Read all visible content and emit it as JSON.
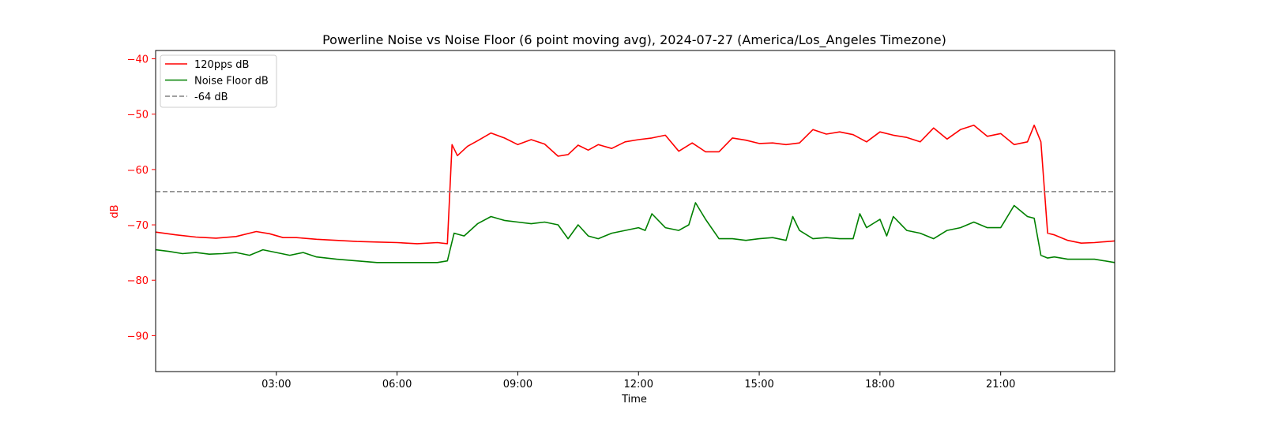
{
  "chart_data": {
    "type": "line",
    "title": "Powerline Noise vs Noise Floor (6 point moving avg), 2024-07-27 (America/Los_Angeles Timezone)",
    "xlabel": "Time",
    "ylabel": "dB",
    "xlim": [
      "00:00",
      "23:50"
    ],
    "ylim": [
      -96.5,
      -38.5
    ],
    "x_ticks": [
      "03:00",
      "06:00",
      "09:00",
      "12:00",
      "15:00",
      "18:00",
      "21:00"
    ],
    "y_ticks": [
      -40,
      -50,
      -60,
      -70,
      -80,
      -90
    ],
    "y_tick_labels": [
      "−40",
      "−50",
      "−60",
      "−70",
      "−80",
      "−90"
    ],
    "grid": false,
    "legend": {
      "placement": "upper-left"
    },
    "colors": {
      "primary": "#ff0000",
      "secondary": "#008000",
      "reference": "#808080",
      "ylabel": "#ff0000"
    },
    "series": [
      {
        "name": "120pps dB",
        "color": "#ff0000",
        "x": [
          "00:00",
          "00:30",
          "01:00",
          "01:30",
          "02:00",
          "02:30",
          "02:50",
          "03:10",
          "03:30",
          "04:00",
          "04:30",
          "05:00",
          "05:30",
          "06:00",
          "06:30",
          "07:00",
          "07:15",
          "07:22",
          "07:30",
          "07:45",
          "08:00",
          "08:20",
          "08:40",
          "09:00",
          "09:20",
          "09:40",
          "10:00",
          "10:15",
          "10:30",
          "10:45",
          "11:00",
          "11:20",
          "11:40",
          "12:00",
          "12:20",
          "12:40",
          "13:00",
          "13:20",
          "13:40",
          "14:00",
          "14:20",
          "14:40",
          "15:00",
          "15:20",
          "15:40",
          "16:00",
          "16:20",
          "16:40",
          "17:00",
          "17:20",
          "17:40",
          "18:00",
          "18:20",
          "18:40",
          "19:00",
          "19:20",
          "19:40",
          "20:00",
          "20:20",
          "20:40",
          "21:00",
          "21:20",
          "21:40",
          "21:50",
          "22:00",
          "22:10",
          "22:20",
          "22:40",
          "23:00",
          "23:20",
          "23:50"
        ],
        "values": [
          -71.3,
          -71.8,
          -72.2,
          -72.4,
          -72.1,
          -71.2,
          -71.6,
          -72.3,
          -72.3,
          -72.6,
          -72.8,
          -73.0,
          -73.1,
          -73.2,
          -73.4,
          -73.2,
          -73.4,
          -55.5,
          -57.5,
          -55.8,
          -54.8,
          -53.4,
          -54.3,
          -55.5,
          -54.6,
          -55.4,
          -57.6,
          -57.3,
          -55.6,
          -56.5,
          -55.5,
          -56.2,
          -55.0,
          -54.6,
          -54.3,
          -53.8,
          -56.7,
          -55.2,
          -56.8,
          -56.8,
          -54.3,
          -54.7,
          -55.3,
          -55.2,
          -55.5,
          -55.2,
          -52.8,
          -53.6,
          -53.2,
          -53.7,
          -55.0,
          -53.2,
          -53.8,
          -54.2,
          -55.0,
          -52.5,
          -54.5,
          -52.8,
          -52.0,
          -54.0,
          -53.5,
          -55.5,
          -55.0,
          -52.0,
          -55.0,
          -71.5,
          -71.8,
          -72.8,
          -73.3,
          -73.2,
          -72.9
        ]
      },
      {
        "name": "Noise Floor dB",
        "color": "#008000",
        "x": [
          "00:00",
          "00:20",
          "00:40",
          "01:00",
          "01:20",
          "01:40",
          "02:00",
          "02:20",
          "02:40",
          "03:00",
          "03:20",
          "03:40",
          "04:00",
          "04:30",
          "05:00",
          "05:30",
          "06:00",
          "06:30",
          "07:00",
          "07:15",
          "07:25",
          "07:40",
          "08:00",
          "08:20",
          "08:40",
          "09:00",
          "09:20",
          "09:40",
          "10:00",
          "10:15",
          "10:30",
          "10:45",
          "11:00",
          "11:20",
          "11:40",
          "12:00",
          "12:10",
          "12:20",
          "12:40",
          "13:00",
          "13:15",
          "13:25",
          "13:40",
          "14:00",
          "14:20",
          "14:40",
          "15:00",
          "15:20",
          "15:40",
          "15:50",
          "16:00",
          "16:20",
          "16:40",
          "17:00",
          "17:20",
          "17:30",
          "17:40",
          "18:00",
          "18:10",
          "18:20",
          "18:40",
          "19:00",
          "19:20",
          "19:40",
          "20:00",
          "20:20",
          "20:40",
          "21:00",
          "21:20",
          "21:40",
          "21:50",
          "22:00",
          "22:10",
          "22:20",
          "22:40",
          "23:00",
          "23:20",
          "23:50"
        ],
        "values": [
          -74.5,
          -74.8,
          -75.2,
          -75.0,
          -75.3,
          -75.2,
          -75.0,
          -75.5,
          -74.5,
          -75.0,
          -75.5,
          -75.0,
          -75.8,
          -76.2,
          -76.5,
          -76.8,
          -76.8,
          -76.8,
          -76.8,
          -76.5,
          -71.5,
          -72.0,
          -69.8,
          -68.5,
          -69.2,
          -69.5,
          -69.8,
          -69.5,
          -70.0,
          -72.5,
          -70.0,
          -72.0,
          -72.5,
          -71.5,
          -71.0,
          -70.5,
          -71.0,
          -68.0,
          -70.5,
          -71.0,
          -70.0,
          -66.0,
          -69.0,
          -72.5,
          -72.5,
          -72.8,
          -72.5,
          -72.3,
          -72.8,
          -68.5,
          -71.0,
          -72.5,
          -72.3,
          -72.5,
          -72.5,
          -68.0,
          -70.5,
          -69.0,
          -72.0,
          -68.5,
          -71.0,
          -71.5,
          -72.5,
          -71.0,
          -70.5,
          -69.5,
          -70.5,
          -70.5,
          -66.5,
          -68.5,
          -68.8,
          -75.5,
          -76.0,
          -75.8,
          -76.2,
          -76.2,
          -76.2,
          -76.8
        ]
      },
      {
        "name": "-64 dB",
        "color": "#808080",
        "style": "dashed",
        "x": [
          "00:00",
          "23:50"
        ],
        "values": [
          -64,
          -64
        ]
      }
    ]
  }
}
